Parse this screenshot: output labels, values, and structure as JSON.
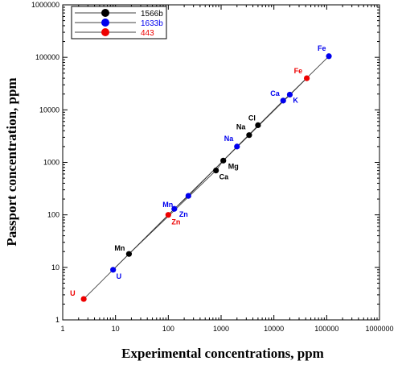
{
  "chart_data": {
    "type": "scatter",
    "xscale": "log",
    "yscale": "log",
    "xlim": [
      1,
      1000000
    ],
    "ylim": [
      1,
      1000000
    ],
    "xlabel": "Experimental concentrations, ppm",
    "ylabel": "Passport concentration, ppm",
    "xticks": [
      "1",
      "10",
      "100",
      "1000",
      "10000",
      "100000",
      "1000000"
    ],
    "yticks": [
      "1",
      "10",
      "100",
      "1000",
      "10000",
      "100000",
      "1000000"
    ],
    "legend_position": "top-left",
    "series": [
      {
        "name": "1566b",
        "color": "#000000",
        "points": [
          {
            "label": "Mn",
            "x": 18,
            "y": 18
          },
          {
            "label": "Ca",
            "x": 800,
            "y": 700
          },
          {
            "label": "Mg",
            "x": 1100,
            "y": 1080
          },
          {
            "label": "Na",
            "x": 3400,
            "y": 3300
          },
          {
            "label": "Cl",
            "x": 5000,
            "y": 5100
          }
        ]
      },
      {
        "name": "1633b",
        "color": "#0000ee",
        "points": [
          {
            "label": "U",
            "x": 9,
            "y": 9
          },
          {
            "label": "Zn",
            "x": 130,
            "y": 130
          },
          {
            "label": "Mn",
            "x": 240,
            "y": 230
          },
          {
            "label": "Na",
            "x": 2000,
            "y": 2000
          },
          {
            "label": "Ca",
            "x": 15000,
            "y": 15000
          },
          {
            "label": "K",
            "x": 20000,
            "y": 19500
          },
          {
            "label": "Fe",
            "x": 110000,
            "y": 105000
          }
        ]
      },
      {
        "name": "443",
        "color": "#ee0000",
        "points": [
          {
            "label": "U",
            "x": 2.5,
            "y": 2.5
          },
          {
            "label": "Zn",
            "x": 100,
            "y": 100
          },
          {
            "label": "Fe",
            "x": 42000,
            "y": 40000
          }
        ]
      }
    ]
  }
}
